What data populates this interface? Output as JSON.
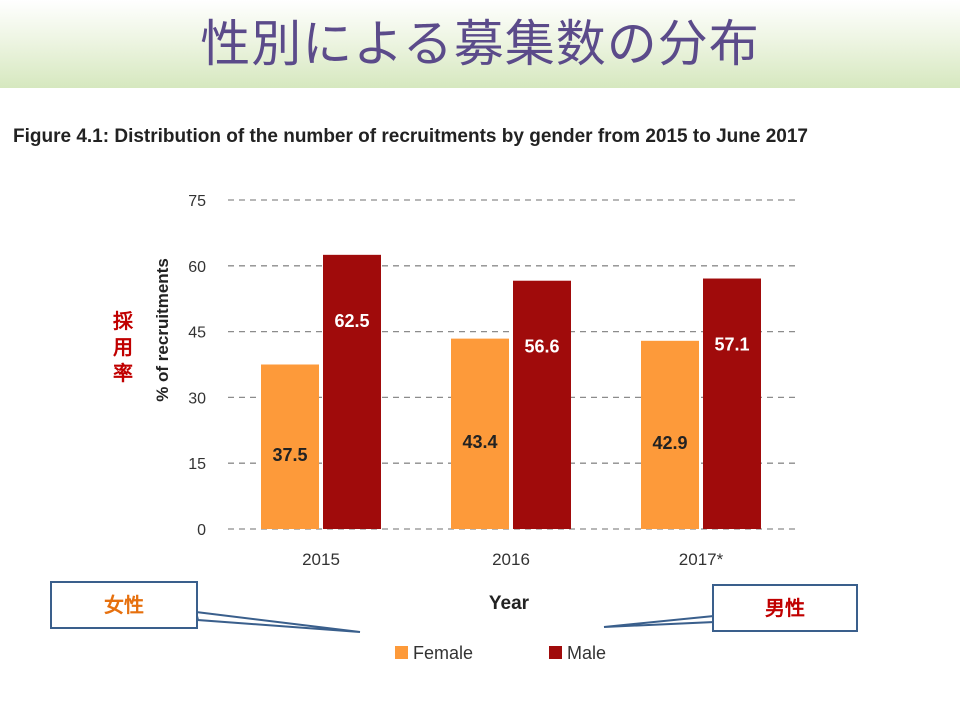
{
  "slide": {
    "title": "性別による募集数の分布"
  },
  "figure_caption": "Figure 4.1: Distribution of the number of recruitments by gender from 2015 to June 2017",
  "annotations": {
    "jp_ylabel_chars": [
      "採",
      "用",
      "率"
    ],
    "female_callout": "女性",
    "male_callout": "男性"
  },
  "colors": {
    "female": "#fd9a3a",
    "male": "#a00b0b",
    "title": "#5b4b8a",
    "callout_border": "#3a5f8c",
    "female_callout_text": "#e6700e",
    "male_callout_text": "#c00000"
  },
  "chart_data": {
    "type": "bar",
    "categories": [
      "2015",
      "2016",
      "2017*"
    ],
    "series": [
      {
        "name": "Female",
        "values": [
          37.5,
          43.4,
          42.9
        ]
      },
      {
        "name": "Male",
        "values": [
          62.5,
          56.6,
          57.1
        ]
      }
    ],
    "data_labels": [
      [
        "37.5",
        "43.4",
        "42.9"
      ],
      [
        "62.5",
        "56.6",
        "57.1"
      ]
    ],
    "xlabel": "Year",
    "ylabel": "% of recruitments",
    "ylim": [
      0,
      75
    ],
    "yticks": [
      0,
      15,
      30,
      45,
      60,
      75
    ],
    "grid": "dashed-horizontal",
    "legend_position": "bottom"
  }
}
